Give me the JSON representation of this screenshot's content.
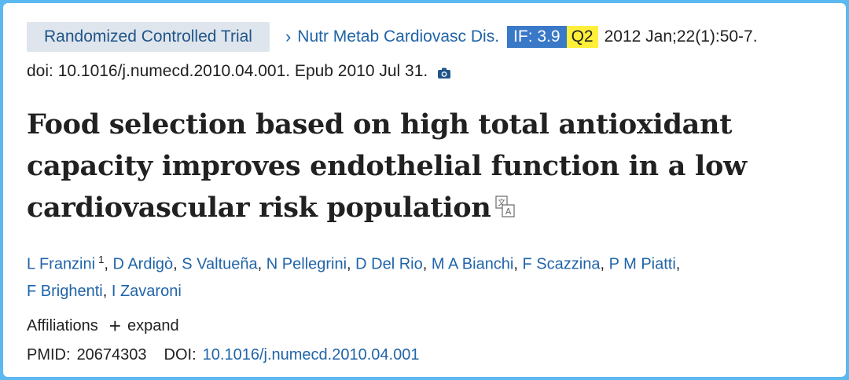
{
  "citation": {
    "publication_type": "Randomized Controlled Trial",
    "journal": "Nutr Metab Cardiovasc Dis.",
    "impact_factor": "IF: 3.9",
    "quartile": "Q2",
    "cite_date": "2012 Jan;22(1):50-7.",
    "doi_epub": "doi: 10.1016/j.numecd.2010.04.001. Epub 2010 Jul 31."
  },
  "article": {
    "title": "Food selection based on high total antioxidant capacity improves endothelial function in a low cardiovascular risk population"
  },
  "authors": [
    {
      "name": "L Franzini",
      "affiliation_ref": "1"
    },
    {
      "name": "D Ardigò"
    },
    {
      "name": "S Valtueña"
    },
    {
      "name": "N Pellegrini"
    },
    {
      "name": "D Del Rio"
    },
    {
      "name": "M A Bianchi"
    },
    {
      "name": "F Scazzina"
    },
    {
      "name": "P M Piatti"
    },
    {
      "name": "F Brighenti"
    },
    {
      "name": "I Zavaroni"
    }
  ],
  "affiliations": {
    "label": "Affiliations",
    "expand_label": "expand"
  },
  "identifiers": {
    "pmid_label": "PMID:",
    "pmid": "20674303",
    "doi_label": "DOI:",
    "doi": "10.1016/j.numecd.2010.04.001"
  },
  "colors": {
    "link": "#2064a8",
    "if_badge": "#3a78c8",
    "quartile_badge": "#ffef3a",
    "frame": "#5cb8f0"
  },
  "icons": {
    "chevron": "chevron-right-icon",
    "camera": "camera-icon",
    "translate": "translate-icon",
    "expand": "plus-icon"
  }
}
